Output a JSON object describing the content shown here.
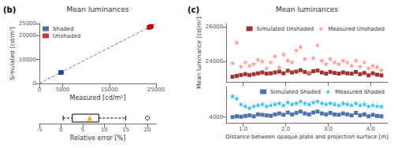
{
  "chart_data": [
    {
      "type": "scatter",
      "title": "Mean luminances",
      "annotations": [
        "(b)"
      ],
      "xlabel": "Measured [cd/m²]",
      "ylabel": "Simulated [cd/m²]",
      "xlim": [
        0,
        25000
      ],
      "xticks": [
        0,
        5000,
        15000,
        25000
      ],
      "ylim": [
        0,
        25000
      ],
      "yticks": [
        0,
        10000,
        20000,
        25000
      ],
      "grid": false,
      "legend": "upper left",
      "series": [
        {
          "name": "Shaded",
          "color": "#1f4e9c",
          "marker": "square",
          "x": [
            4600,
            4650,
            4700,
            4550,
            4700,
            4650,
            4600,
            4650,
            4700,
            4550,
            4700,
            4650,
            4600,
            4650,
            4700,
            4550,
            4700,
            4650
          ],
          "values": [
            4550,
            4600,
            4650,
            4500,
            4650,
            4600,
            4550,
            4600,
            4650,
            4500,
            4650,
            4600,
            4550,
            4600,
            4650,
            4500,
            4650,
            4600
          ]
        },
        {
          "name": "Unshaded",
          "color": "#c00000",
          "marker": "square",
          "x": [
            23500,
            23600,
            23800,
            23700,
            23900,
            24000,
            23500,
            23600,
            23700,
            23800,
            23900,
            24000,
            23500,
            23600,
            23700,
            23800,
            23900,
            24000
          ],
          "values": [
            23400,
            23500,
            23700,
            23600,
            23800,
            23900,
            23400,
            23500,
            23600,
            23700,
            23800,
            23900,
            23400,
            23500,
            23600,
            23700,
            23800,
            23900
          ]
        },
        {
          "type": "line",
          "line_style": "dashed",
          "color": "gray",
          "x": [
            0,
            25000
          ],
          "values": [
            0,
            25000
          ]
        }
      ]
    },
    {
      "type": "box",
      "xlabel": "Relative error [%]",
      "xlim": [
        -5,
        22
      ],
      "xticks": [
        -5,
        0,
        5,
        10,
        15,
        20
      ],
      "grid": false,
      "tick_labels": "x",
      "series": [
        {
          "type": "box",
          "color": "black",
          "whisker_low": 0.5,
          "q1": 2.625,
          "q3": 8.75,
          "whisker_high": 15.0
        },
        {
          "type": "scatter",
          "marker": "hollow_circle",
          "color": "black",
          "values": [
            20.0
          ]
        },
        {
          "type": "scatter",
          "marker": "triangle",
          "color": "#ff8c00",
          "values": [
            6.638888888888889
          ]
        }
      ]
    },
    {
      "type": "scatter",
      "title": "Mean luminances",
      "annotations": [
        "(c)"
      ],
      "ylabel": "Mean luminance [cd/m²]",
      "xlim": [
        0.6,
        4.4
      ],
      "xticks": [
        {
          "value": 1.0,
          "label": "1.0"
        },
        {
          "value": 2.0,
          "label": "2.0"
        },
        {
          "value": 3.0,
          "label": "3.0"
        },
        {
          "value": 4.0,
          "label": "4.0"
        }
      ],
      "ylim": [
        22800,
        26200
      ],
      "yticks": [
        24000,
        26000
      ],
      "grid": false,
      "tick_labels": "y",
      "legend": "upper right",
      "x": [
        0.75,
        0.85,
        0.95,
        1.05,
        1.15,
        1.25,
        1.35,
        1.45,
        1.55,
        1.65,
        1.75,
        1.85,
        1.95,
        2.05,
        2.15,
        2.25,
        2.35,
        2.45,
        2.55,
        2.65,
        2.75,
        2.85,
        2.95,
        3.05,
        3.15,
        3.25,
        3.35,
        3.45,
        3.55,
        3.65,
        3.75,
        3.85,
        3.95,
        4.05,
        4.15,
        4.25
      ],
      "series": [
        {
          "name": "Simulated Unshaded",
          "color": "#8b0000",
          "marker": "square",
          "values": [
            23100,
            23150,
            23200,
            23250,
            23200,
            23250,
            23300,
            23350,
            23280,
            23300,
            23350,
            23400,
            23300,
            23450,
            23350,
            23400,
            23480,
            23380,
            23300,
            23420,
            23460,
            23350,
            23280,
            23380,
            23320,
            23280,
            23350,
            23300,
            23280,
            23380,
            23250,
            23320,
            23180,
            23300,
            23220,
            23180
          ]
        },
        {
          "name": "Measured Unshaded",
          "color": "#ff8080",
          "marker": "star",
          "values": [
            23900,
            25100,
            23700,
            23950,
            23750,
            23850,
            24100,
            24000,
            23600,
            23950,
            24300,
            23650,
            24400,
            24050,
            23950,
            24650,
            24850,
            24150,
            23350,
            24200,
            24950,
            24050,
            23850,
            24150,
            23950,
            23850,
            24050,
            23950,
            23750,
            24050,
            23700,
            23950,
            23600,
            23750,
            23680,
            23500
          ]
        }
      ]
    },
    {
      "type": "scatter",
      "xlabel": "Distance between opaque plate and projection surface [m]",
      "xlim": [
        0.6,
        4.4
      ],
      "xticks": [
        {
          "value": 1.0,
          "label": "1.0"
        },
        {
          "value": 2.0,
          "label": "2.0"
        },
        {
          "value": 3.0,
          "label": "3.0"
        },
        {
          "value": 4.0,
          "label": "4.0"
        }
      ],
      "ylim": [
        3700,
        5600
      ],
      "yticks": [
        4000
      ],
      "grid": false,
      "legend": "upper right",
      "x": [
        0.75,
        0.85,
        0.95,
        1.05,
        1.15,
        1.25,
        1.35,
        1.45,
        1.55,
        1.65,
        1.75,
        1.85,
        1.95,
        2.05,
        2.15,
        2.25,
        2.35,
        2.45,
        2.55,
        2.65,
        2.75,
        2.85,
        2.95,
        3.05,
        3.15,
        3.25,
        3.35,
        3.45,
        3.55,
        3.65,
        3.75,
        3.85,
        3.95,
        4.05,
        4.15,
        4.25
      ],
      "series": [
        {
          "name": "Simulated Shaded",
          "color": "#1f4e9c",
          "marker": "square",
          "values": [
            4000,
            4040,
            4020,
            4060,
            4090,
            4040,
            4140,
            4120,
            4090,
            4070,
            4140,
            4190,
            4120,
            4240,
            4140,
            4220,
            4290,
            4190,
            4140,
            4240,
            4290,
            4190,
            4140,
            4220,
            4140,
            4120,
            4190,
            4140,
            4090,
            4220,
            4090,
            4140,
            4040,
            4120,
            4060,
            4040
          ]
        },
        {
          "name": "Measured Shaded",
          "color": "#00b0f0",
          "marker": "star",
          "values": [
            5100,
            4980,
            4680,
            4580,
            4480,
            4580,
            4630,
            4680,
            4580,
            4630,
            4680,
            4730,
            4630,
            4780,
            4680,
            4730,
            4830,
            4730,
            4680,
            4780,
            4830,
            4730,
            4680,
            4730,
            4680,
            4630,
            4730,
            4680,
            4630,
            4730,
            4630,
            4680,
            4580,
            4630,
            4580,
            4560
          ]
        }
      ]
    }
  ]
}
